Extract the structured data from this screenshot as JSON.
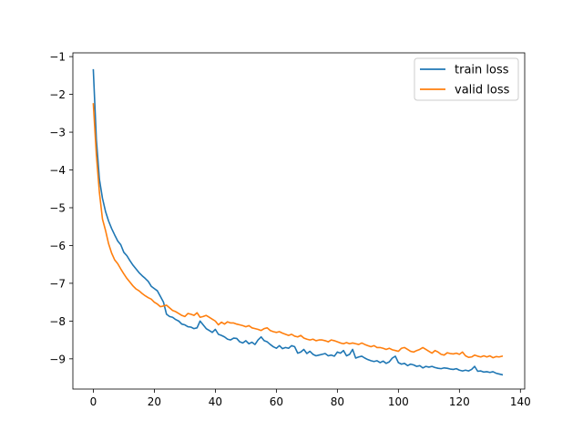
{
  "chart_data": {
    "type": "line",
    "title": "",
    "xlabel": "",
    "ylabel": "",
    "xlim": [
      -6.7,
      141.4
    ],
    "ylim": [
      -9.8,
      -0.9
    ],
    "xticks": [
      0,
      20,
      40,
      60,
      80,
      100,
      120,
      140
    ],
    "yticks": [
      -1,
      -2,
      -3,
      -4,
      -5,
      -6,
      -7,
      -8,
      -9
    ],
    "xtick_labels": [
      "0",
      "20",
      "40",
      "60",
      "80",
      "100",
      "120",
      "140"
    ],
    "ytick_labels": [
      "−1",
      "−2",
      "−3",
      "−4",
      "−5",
      "−6",
      "−7",
      "−8",
      "−9"
    ],
    "grid": false,
    "legend_position": "top-right",
    "series": [
      {
        "name": "train loss",
        "color": "#1f77b4",
        "x": [
          0,
          1,
          2,
          3,
          4,
          5,
          6,
          7,
          8,
          9,
          10,
          11,
          12,
          13,
          14,
          15,
          16,
          17,
          18,
          19,
          20,
          21,
          22,
          23,
          24,
          25,
          26,
          27,
          28,
          29,
          30,
          31,
          32,
          33,
          34,
          35,
          36,
          37,
          38,
          39,
          40,
          41,
          42,
          43,
          44,
          45,
          46,
          47,
          48,
          49,
          50,
          51,
          52,
          53,
          54,
          55,
          56,
          57,
          58,
          59,
          60,
          61,
          62,
          63,
          64,
          65,
          66,
          67,
          68,
          69,
          70,
          71,
          72,
          73,
          74,
          75,
          76,
          77,
          78,
          79,
          80,
          81,
          82,
          83,
          84,
          85,
          86,
          87,
          88,
          89,
          90,
          91,
          92,
          93,
          94,
          95,
          96,
          97,
          98,
          99,
          100,
          101,
          102,
          103,
          104,
          105,
          106,
          107,
          108,
          109,
          110,
          111,
          112,
          113,
          114,
          115,
          116,
          117,
          118,
          119,
          120,
          121,
          122,
          123,
          124,
          125,
          126,
          127,
          128,
          129,
          130,
          131,
          132,
          133,
          134
        ],
        "y": [
          -1.35,
          -3.2,
          -4.25,
          -4.75,
          -5.1,
          -5.35,
          -5.55,
          -5.72,
          -5.88,
          -5.98,
          -6.18,
          -6.27,
          -6.4,
          -6.52,
          -6.62,
          -6.72,
          -6.8,
          -6.87,
          -6.95,
          -7.08,
          -7.14,
          -7.2,
          -7.35,
          -7.5,
          -7.82,
          -7.88,
          -7.9,
          -7.96,
          -8.0,
          -8.08,
          -8.1,
          -8.15,
          -8.16,
          -8.2,
          -8.18,
          -8.0,
          -8.1,
          -8.2,
          -8.25,
          -8.3,
          -8.22,
          -8.35,
          -8.38,
          -8.42,
          -8.48,
          -8.5,
          -8.45,
          -8.46,
          -8.55,
          -8.58,
          -8.52,
          -8.6,
          -8.56,
          -8.62,
          -8.5,
          -8.42,
          -8.52,
          -8.55,
          -8.62,
          -8.68,
          -8.72,
          -8.65,
          -8.73,
          -8.7,
          -8.72,
          -8.65,
          -8.68,
          -8.85,
          -8.82,
          -8.75,
          -8.86,
          -8.8,
          -8.88,
          -8.92,
          -8.9,
          -8.88,
          -8.86,
          -8.92,
          -8.9,
          -8.93,
          -8.82,
          -8.85,
          -8.78,
          -8.92,
          -8.88,
          -8.75,
          -8.98,
          -8.95,
          -8.93,
          -8.98,
          -9.02,
          -9.05,
          -9.07,
          -9.05,
          -9.1,
          -9.06,
          -9.12,
          -9.08,
          -8.98,
          -8.93,
          -9.1,
          -9.14,
          -9.12,
          -9.18,
          -9.14,
          -9.16,
          -9.2,
          -9.18,
          -9.24,
          -9.2,
          -9.22,
          -9.2,
          -9.23,
          -9.25,
          -9.26,
          -9.24,
          -9.25,
          -9.27,
          -9.28,
          -9.26,
          -9.3,
          -9.32,
          -9.3,
          -9.32,
          -9.28,
          -9.2,
          -9.33,
          -9.32,
          -9.35,
          -9.34,
          -9.36,
          -9.34,
          -9.38,
          -9.4,
          -9.42
        ]
      },
      {
        "name": "valid loss",
        "color": "#ff7f0e",
        "x": [
          0,
          1,
          2,
          3,
          4,
          5,
          6,
          7,
          8,
          9,
          10,
          11,
          12,
          13,
          14,
          15,
          16,
          17,
          18,
          19,
          20,
          21,
          22,
          23,
          24,
          25,
          26,
          27,
          28,
          29,
          30,
          31,
          32,
          33,
          34,
          35,
          36,
          37,
          38,
          39,
          40,
          41,
          42,
          43,
          44,
          45,
          46,
          47,
          48,
          49,
          50,
          51,
          52,
          53,
          54,
          55,
          56,
          57,
          58,
          59,
          60,
          61,
          62,
          63,
          64,
          65,
          66,
          67,
          68,
          69,
          70,
          71,
          72,
          73,
          74,
          75,
          76,
          77,
          78,
          79,
          80,
          81,
          82,
          83,
          84,
          85,
          86,
          87,
          88,
          89,
          90,
          91,
          92,
          93,
          94,
          95,
          96,
          97,
          98,
          99,
          100,
          101,
          102,
          103,
          104,
          105,
          106,
          107,
          108,
          109,
          110,
          111,
          112,
          113,
          114,
          115,
          116,
          117,
          118,
          119,
          120,
          121,
          122,
          123,
          124,
          125,
          126,
          127,
          128,
          129,
          130,
          131,
          132,
          133,
          134
        ],
        "y": [
          -2.25,
          -3.6,
          -4.6,
          -5.3,
          -5.6,
          -5.95,
          -6.2,
          -6.38,
          -6.48,
          -6.62,
          -6.75,
          -6.87,
          -6.97,
          -7.07,
          -7.15,
          -7.2,
          -7.27,
          -7.33,
          -7.38,
          -7.42,
          -7.5,
          -7.55,
          -7.62,
          -7.6,
          -7.58,
          -7.65,
          -7.72,
          -7.75,
          -7.8,
          -7.85,
          -7.88,
          -7.8,
          -7.82,
          -7.85,
          -7.78,
          -7.9,
          -7.88,
          -7.85,
          -7.9,
          -7.95,
          -8.0,
          -8.1,
          -8.03,
          -8.08,
          -8.02,
          -8.05,
          -8.05,
          -8.08,
          -8.1,
          -8.12,
          -8.15,
          -8.12,
          -8.18,
          -8.2,
          -8.22,
          -8.25,
          -8.2,
          -8.18,
          -8.25,
          -8.28,
          -8.3,
          -8.28,
          -8.32,
          -8.35,
          -8.38,
          -8.35,
          -8.4,
          -8.42,
          -8.38,
          -8.45,
          -8.48,
          -8.5,
          -8.48,
          -8.52,
          -8.5,
          -8.5,
          -8.52,
          -8.55,
          -8.5,
          -8.52,
          -8.55,
          -8.58,
          -8.6,
          -8.57,
          -8.6,
          -8.58,
          -8.6,
          -8.62,
          -8.58,
          -8.62,
          -8.65,
          -8.68,
          -8.65,
          -8.7,
          -8.7,
          -8.72,
          -8.75,
          -8.72,
          -8.76,
          -8.78,
          -8.8,
          -8.72,
          -8.7,
          -8.75,
          -8.8,
          -8.82,
          -8.78,
          -8.75,
          -8.7,
          -8.75,
          -8.8,
          -8.85,
          -8.78,
          -8.82,
          -8.88,
          -8.9,
          -8.84,
          -8.86,
          -8.87,
          -8.85,
          -8.88,
          -8.82,
          -8.92,
          -8.96,
          -8.95,
          -8.9,
          -8.93,
          -8.95,
          -8.92,
          -8.95,
          -8.92,
          -8.97,
          -8.94,
          -8.95,
          -8.93
        ]
      }
    ]
  }
}
